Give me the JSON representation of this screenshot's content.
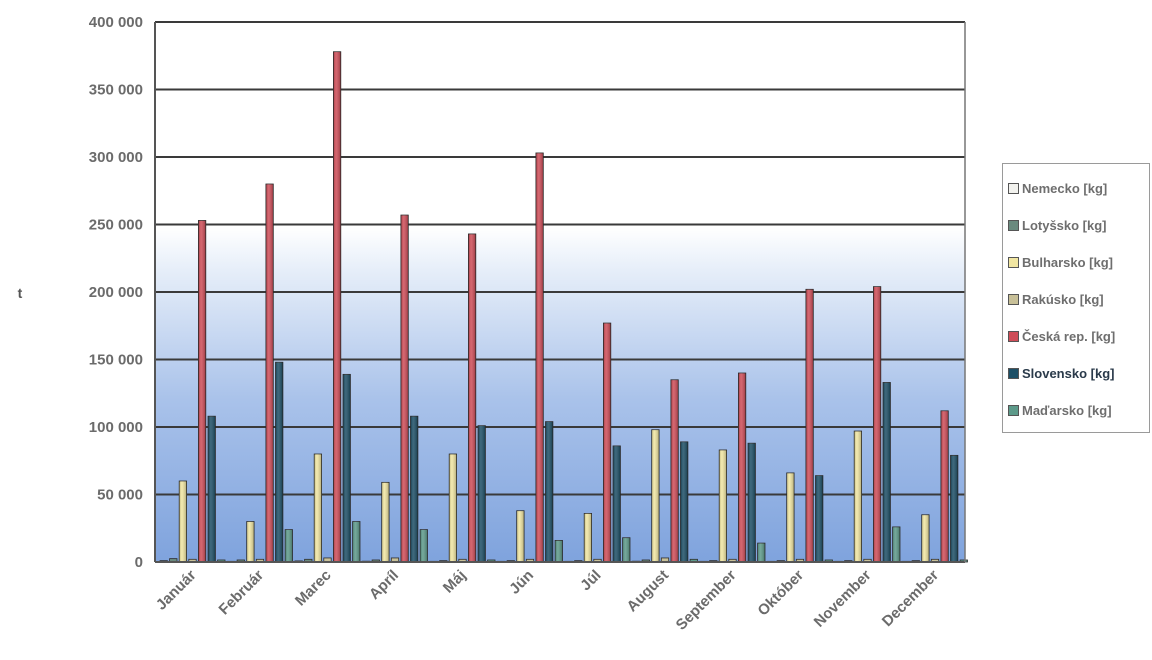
{
  "chart_data": {
    "type": "bar",
    "title": "",
    "xlabel": "",
    "ylabel": "t",
    "ylim": [
      0,
      400000
    ],
    "y_ticks": [
      "0",
      "50 000",
      "100 000",
      "150 000",
      "200 000",
      "250 000",
      "300 000",
      "350 000",
      "400 000"
    ],
    "grid": true,
    "legend_position": "right",
    "categories": [
      "Január",
      "Február",
      "Marec",
      "Apríl",
      "Máj",
      "Jún",
      "Júl",
      "August",
      "September",
      "Október",
      "November",
      "December"
    ],
    "series": [
      {
        "name": "Nemecko [kg]",
        "color": "#f2f2ee",
        "values": [
          1000,
          500,
          800,
          600,
          500,
          500,
          500,
          600,
          500,
          500,
          500,
          500
        ]
      },
      {
        "name": "Lotyšsko [kg]",
        "color": "#6a8a7e",
        "values": [
          2500,
          1500,
          2000,
          1500,
          1000,
          1000,
          1000,
          1500,
          1000,
          1000,
          1000,
          1000
        ]
      },
      {
        "name": "Bulharsko [kg]",
        "color": "#f1e6a2",
        "values": [
          60000,
          30000,
          80000,
          59000,
          80000,
          38000,
          36000,
          98000,
          83000,
          66000,
          97000,
          35000
        ]
      },
      {
        "name": "Rakúsko [kg]",
        "color": "#c8c098",
        "values": [
          2000,
          2000,
          3000,
          3000,
          2000,
          2000,
          2000,
          3000,
          2000,
          2000,
          2000,
          2000
        ]
      },
      {
        "name": "Česká rep. [kg]",
        "color": "#cf4d58",
        "values": [
          253000,
          280000,
          378000,
          257000,
          243000,
          303000,
          177000,
          135000,
          140000,
          202000,
          204000,
          112000
        ]
      },
      {
        "name": "Slovensko [kg]",
        "color": "#1d4f66",
        "values": [
          108000,
          148000,
          139000,
          108000,
          101000,
          104000,
          86000,
          89000,
          88000,
          64000,
          133000,
          79000
        ]
      },
      {
        "name": "Maďarsko [kg]",
        "color": "#5d9a8a",
        "values": [
          1500,
          24000,
          30000,
          24000,
          1500,
          16000,
          18000,
          2000,
          14000,
          1500,
          26000,
          1500
        ]
      }
    ]
  }
}
